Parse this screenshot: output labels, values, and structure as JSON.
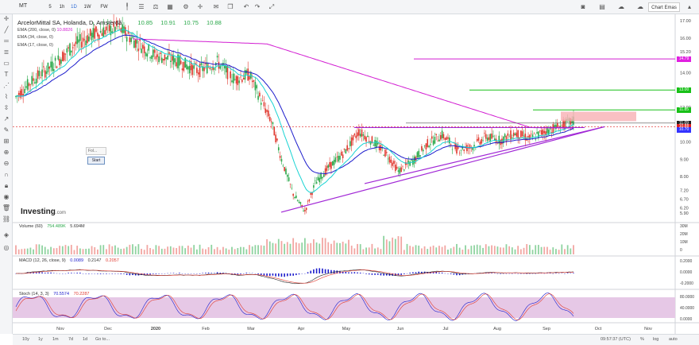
{
  "toolbar": {
    "symbol": "MT",
    "intervals": [
      "5",
      "1h",
      "1D",
      "1W",
      "FW"
    ],
    "chart_button": "Chart Emas"
  },
  "legend": {
    "title": "ArcelorMittal SA, Holanda, D, Amsterdã",
    "ohlc": [
      "10.85",
      "10.91",
      "10.75",
      "10.88"
    ],
    "ema200": "EMA (200, close, 0)",
    "ema200_val": "10.8826",
    "ema34": "EMA (34, close, 0)",
    "ema17": "EMA (17, close, 0)"
  },
  "popup": {
    "label": "Fol...",
    "start": "Start"
  },
  "watermark": {
    "brand": "Investing",
    "suffix": ".com"
  },
  "volume": {
    "label": "Volume (60)",
    "v1": "754.489K",
    "v2": "5.694M",
    "ticks": [
      "30M",
      "20M",
      "10M",
      "0"
    ]
  },
  "macd": {
    "label": "MACD (12, 26, close, 9)",
    "v1": "0.0089",
    "v2": "0.2147",
    "v3": "0.2057",
    "ticks": [
      "0.2000",
      "0.0000",
      "-0.2000"
    ]
  },
  "stoch": {
    "label": "Stoch (14, 3, 3)",
    "v1": "70.5574",
    "v2": "70.2287",
    "ticks": [
      "80.0000",
      "40.0000",
      "0.0000"
    ]
  },
  "price_axis": [
    "17.00",
    "16.00",
    "15.20",
    "14.00",
    "13.00",
    "12.00",
    "11.00",
    "10.00",
    "9.00",
    "8.00",
    "7.20",
    "6.70",
    "6.20",
    "5.90"
  ],
  "price_labels": [
    {
      "text": "14.79",
      "color": "#e020e0"
    },
    {
      "text": "13.00",
      "color": "#18c018"
    },
    {
      "text": "11.85",
      "color": "#18c018"
    },
    {
      "text": "11.09",
      "color": "#222222"
    },
    {
      "text": "10.88",
      "color": "#e02020"
    },
    {
      "text": "10.70",
      "color": "#3333ff"
    }
  ],
  "time_axis": [
    "Nov",
    "Dec",
    "2020",
    "Feb",
    "Mar",
    "Apr",
    "May",
    "Jun",
    "Jul",
    "Aug",
    "Sep",
    "Oct",
    "Nov"
  ],
  "bottombar": {
    "periods": [
      "10y",
      "1y",
      "1m",
      "7d",
      "1d",
      "Go to..."
    ],
    "time": "09:57:37 (UTC)",
    "opts": [
      "%",
      "log",
      "auto"
    ]
  },
  "colors": {
    "up": "#2aa84a",
    "down": "#e0392f",
    "ema200": "#d21ed2",
    "ema34": "#1c1ccc",
    "ema17": "#19d3d3",
    "trend": "#a128d6"
  }
}
